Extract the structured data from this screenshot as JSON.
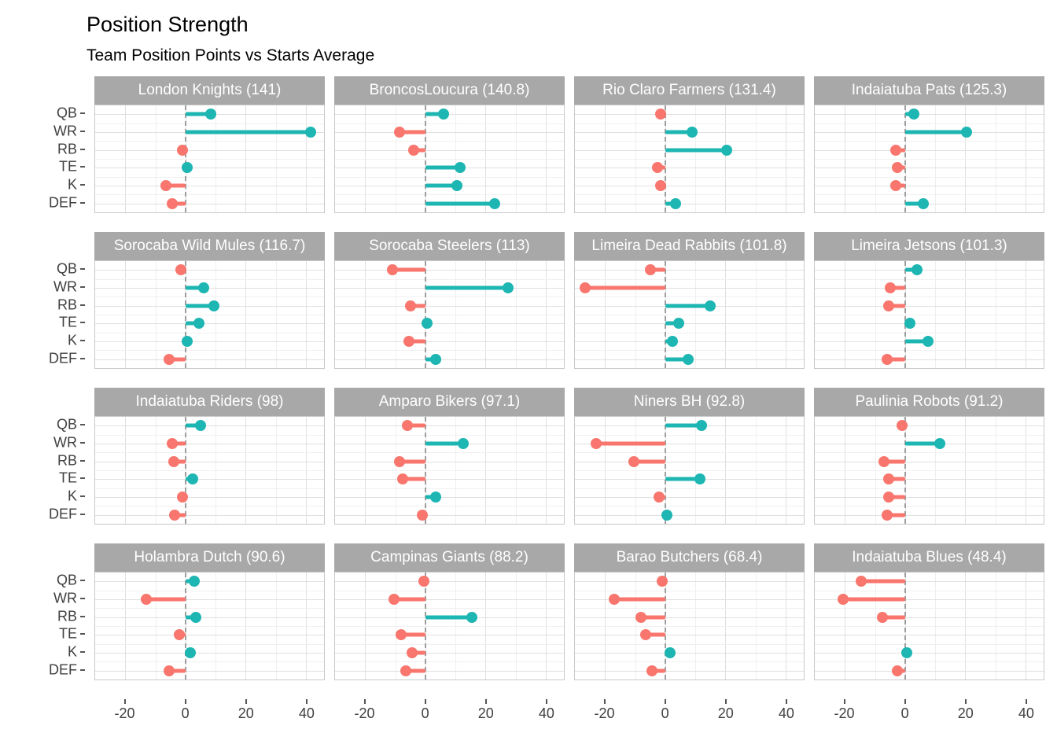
{
  "title": "Position Strength",
  "subtitle": "Team Position Points vs Starts Average",
  "chart_data": {
    "type": "bar",
    "style": "lollipop",
    "orientation": "horizontal",
    "facet_layout": "4x4 grid",
    "categories": [
      "QB",
      "WR",
      "RB",
      "TE",
      "K",
      "DEF"
    ],
    "xlim": [
      -30,
      46
    ],
    "x_ticks": [
      -20,
      0,
      20,
      40
    ],
    "x_minor_gridlines": [
      -10,
      10,
      30
    ],
    "grid": true,
    "colors": {
      "positive": "#1db6b2",
      "negative": "#f8766d",
      "strip_bg": "#a8a8a8",
      "strip_text": "#ffffff",
      "zero_line": "#9e9e9e",
      "axis_text": "#404040"
    },
    "facets": [
      {
        "label": "London Knights (141)",
        "team": "London Knights",
        "total": 141,
        "values": [
          8.5,
          41.5,
          -1,
          0.5,
          -6.5,
          -4.5
        ]
      },
      {
        "label": "BroncosLoucura (140.8)",
        "team": "BroncosLoucura",
        "total": 140.8,
        "values": [
          6,
          -8.5,
          -4,
          11.5,
          10.5,
          23
        ]
      },
      {
        "label": "Rio Claro Farmers (131.4)",
        "team": "Rio Claro Farmers",
        "total": 131.4,
        "values": [
          -1.5,
          9,
          20.5,
          -2.5,
          -1.5,
          3.5
        ]
      },
      {
        "label": "Indaiatuba Pats (125.3)",
        "team": "Indaiatuba Pats",
        "total": 125.3,
        "values": [
          3,
          20.5,
          -3,
          -2.5,
          -3,
          6
        ]
      },
      {
        "label": "Sorocaba Wild Mules (116.7)",
        "team": "Sorocaba Wild Mules",
        "total": 116.7,
        "values": [
          -1.5,
          6,
          9.5,
          4.5,
          0.5,
          -5.5
        ]
      },
      {
        "label": "Sorocaba Steelers (113)",
        "team": "Sorocaba Steelers",
        "total": 113,
        "values": [
          -11,
          27.5,
          -5,
          0.5,
          -5.5,
          3.5
        ]
      },
      {
        "label": "Limeira Dead Rabbits (101.8)",
        "team": "Limeira Dead Rabbits",
        "total": 101.8,
        "values": [
          -5,
          -26.5,
          15,
          4.5,
          2.5,
          7.5
        ]
      },
      {
        "label": "Limeira Jetsons (101.3)",
        "team": "Limeira Jetsons",
        "total": 101.3,
        "values": [
          4,
          -5,
          -5.5,
          1.5,
          7.5,
          -6
        ]
      },
      {
        "label": "Indaiatuba Riders (98)",
        "team": "Indaiatuba Riders",
        "total": 98,
        "values": [
          5,
          -4.5,
          -4,
          2.5,
          -1,
          -3.5
        ]
      },
      {
        "label": "Amparo Bikers (97.1)",
        "team": "Amparo Bikers",
        "total": 97.1,
        "values": [
          -6,
          12.5,
          -8.5,
          -7.5,
          3.5,
          -1
        ]
      },
      {
        "label": "Niners BH (92.8)",
        "team": "Niners BH",
        "total": 92.8,
        "values": [
          12,
          -23,
          -10.5,
          11.5,
          -2,
          0.5
        ]
      },
      {
        "label": "Paulinia Robots (91.2)",
        "team": "Paulinia Robots",
        "total": 91.2,
        "values": [
          -1,
          11.5,
          -7,
          -5.5,
          -5.5,
          -6
        ]
      },
      {
        "label": "Holambra Dutch (90.6)",
        "team": "Holambra Dutch",
        "total": 90.6,
        "values": [
          3,
          -13,
          3.5,
          -2,
          1.5,
          -5.5
        ]
      },
      {
        "label": "Campinas Giants (88.2)",
        "team": "Campinas Giants",
        "total": 88.2,
        "values": [
          -0.5,
          -10.5,
          15.5,
          -8,
          -4.5,
          -6.5
        ]
      },
      {
        "label": "Barao Butchers (68.4)",
        "team": "Barao Butchers",
        "total": 68.4,
        "values": [
          -1,
          -17,
          -8,
          -6.5,
          1.5,
          -4.5
        ]
      },
      {
        "label": "Indaiatuba Blues (48.4)",
        "team": "Indaiatuba Blues",
        "total": 48.4,
        "values": [
          -14.5,
          -20.5,
          -7.5,
          null,
          0.5,
          -2.5
        ]
      }
    ]
  }
}
